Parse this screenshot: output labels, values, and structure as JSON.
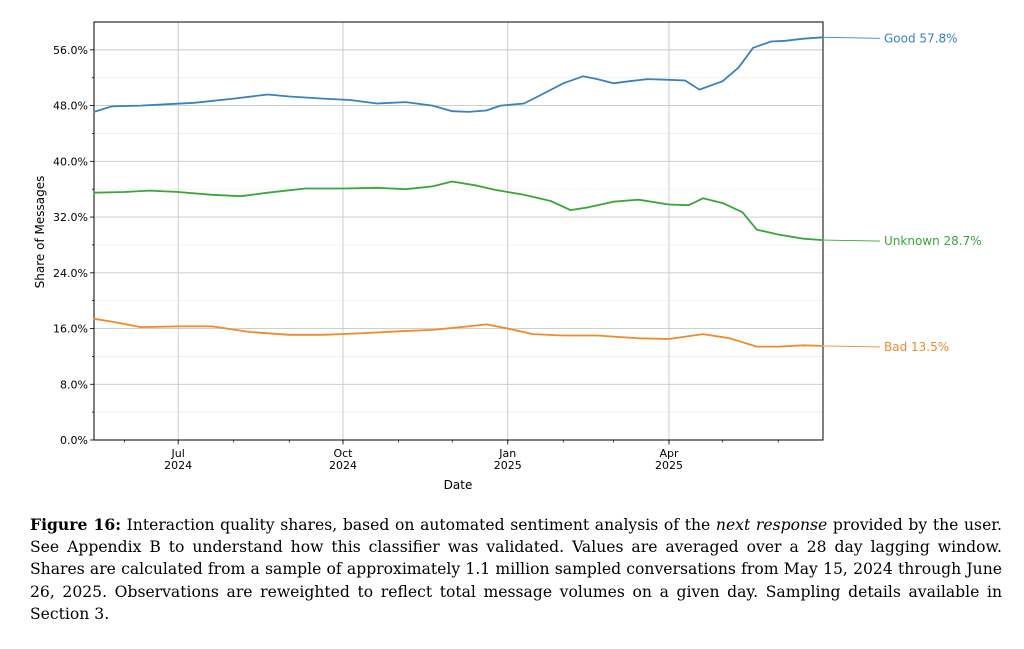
{
  "chart_data": {
    "type": "line",
    "xlabel": "Date",
    "ylabel": "Share of Messages",
    "ylim": [
      0,
      60
    ],
    "xlim": [
      "2024-05-15",
      "2025-06-26"
    ],
    "y_ticks": [
      "0.0%",
      "8.0%",
      "16.0%",
      "24.0%",
      "32.0%",
      "40.0%",
      "48.0%",
      "56.0%"
    ],
    "x_ticks": [
      {
        "date": "2024-07-01",
        "month": "Jul",
        "year": "2024"
      },
      {
        "date": "2024-10-01",
        "month": "Oct",
        "year": "2024"
      },
      {
        "date": "2025-01-01",
        "month": "Jan",
        "year": "2025"
      },
      {
        "date": "2025-04-01",
        "month": "Apr",
        "year": "2025"
      }
    ],
    "grid": true,
    "series": [
      {
        "name": "Good",
        "end_label": "Good  57.8%",
        "color": "#3a82bd",
        "points": [
          [
            "2024-05-15",
            47.1
          ],
          [
            "2024-05-25",
            47.9
          ],
          [
            "2024-06-10",
            48.0
          ],
          [
            "2024-06-25",
            48.2
          ],
          [
            "2024-07-10",
            48.4
          ],
          [
            "2024-08-01",
            49.0
          ],
          [
            "2024-08-20",
            49.6
          ],
          [
            "2024-09-01",
            49.3
          ],
          [
            "2024-09-20",
            49.0
          ],
          [
            "2024-10-05",
            48.8
          ],
          [
            "2024-10-20",
            48.3
          ],
          [
            "2024-11-05",
            48.5
          ],
          [
            "2024-11-20",
            48.0
          ],
          [
            "2024-12-01",
            47.2
          ],
          [
            "2024-12-10",
            47.1
          ],
          [
            "2024-12-20",
            47.3
          ],
          [
            "2024-12-28",
            48.0
          ],
          [
            "2025-01-10",
            48.3
          ],
          [
            "2025-01-20",
            49.6
          ],
          [
            "2025-02-01",
            51.2
          ],
          [
            "2025-02-12",
            52.2
          ],
          [
            "2025-02-20",
            51.8
          ],
          [
            "2025-03-01",
            51.2
          ],
          [
            "2025-03-10",
            51.5
          ],
          [
            "2025-03-20",
            51.8
          ],
          [
            "2025-04-01",
            51.7
          ],
          [
            "2025-04-10",
            51.6
          ],
          [
            "2025-04-18",
            50.3
          ],
          [
            "2025-05-01",
            51.5
          ],
          [
            "2025-05-10",
            53.5
          ],
          [
            "2025-05-18",
            56.3
          ],
          [
            "2025-05-28",
            57.2
          ],
          [
            "2025-06-05",
            57.3
          ],
          [
            "2025-06-15",
            57.6
          ],
          [
            "2025-06-26",
            57.8
          ]
        ]
      },
      {
        "name": "Unknown",
        "end_label": "Unknown  28.7%",
        "color": "#3aa63a",
        "points": [
          [
            "2024-05-15",
            35.5
          ],
          [
            "2024-06-01",
            35.6
          ],
          [
            "2024-06-15",
            35.8
          ],
          [
            "2024-07-01",
            35.6
          ],
          [
            "2024-07-20",
            35.2
          ],
          [
            "2024-08-05",
            35.0
          ],
          [
            "2024-08-20",
            35.5
          ],
          [
            "2024-09-10",
            36.1
          ],
          [
            "2024-10-01",
            36.1
          ],
          [
            "2024-10-20",
            36.2
          ],
          [
            "2024-11-05",
            36.0
          ],
          [
            "2024-11-20",
            36.4
          ],
          [
            "2024-12-01",
            37.1
          ],
          [
            "2024-12-15",
            36.5
          ],
          [
            "2024-12-25",
            35.9
          ],
          [
            "2025-01-10",
            35.2
          ],
          [
            "2025-01-25",
            34.3
          ],
          [
            "2025-02-05",
            33.0
          ],
          [
            "2025-02-15",
            33.4
          ],
          [
            "2025-03-01",
            34.2
          ],
          [
            "2025-03-15",
            34.5
          ],
          [
            "2025-04-01",
            33.8
          ],
          [
            "2025-04-12",
            33.7
          ],
          [
            "2025-04-20",
            34.7
          ],
          [
            "2025-05-01",
            34.0
          ],
          [
            "2025-05-12",
            32.7
          ],
          [
            "2025-05-20",
            30.2
          ],
          [
            "2025-06-01",
            29.5
          ],
          [
            "2025-06-15",
            28.9
          ],
          [
            "2025-06-26",
            28.7
          ]
        ]
      },
      {
        "name": "Bad",
        "end_label": "Bad  13.5%",
        "color": "#f08a2a",
        "points": [
          [
            "2024-05-15",
            17.4
          ],
          [
            "2024-05-25",
            17.0
          ],
          [
            "2024-06-10",
            16.2
          ],
          [
            "2024-07-01",
            16.3
          ],
          [
            "2024-07-20",
            16.3
          ],
          [
            "2024-08-10",
            15.5
          ],
          [
            "2024-09-01",
            15.1
          ],
          [
            "2024-09-20",
            15.1
          ],
          [
            "2024-10-10",
            15.3
          ],
          [
            "2024-11-01",
            15.6
          ],
          [
            "2024-11-20",
            15.8
          ],
          [
            "2024-12-10",
            16.3
          ],
          [
            "2024-12-20",
            16.6
          ],
          [
            "2025-01-01",
            16.0
          ],
          [
            "2025-01-15",
            15.2
          ],
          [
            "2025-02-01",
            15.0
          ],
          [
            "2025-02-20",
            15.0
          ],
          [
            "2025-03-15",
            14.6
          ],
          [
            "2025-04-01",
            14.5
          ],
          [
            "2025-04-20",
            15.2
          ],
          [
            "2025-05-05",
            14.6
          ],
          [
            "2025-05-20",
            13.4
          ],
          [
            "2025-06-01",
            13.4
          ],
          [
            "2025-06-15",
            13.6
          ],
          [
            "2025-06-26",
            13.5
          ]
        ]
      }
    ]
  },
  "caption": {
    "label": "Figure 16:",
    "text_before": " Interaction quality shares, based on automated sentiment analysis of the ",
    "emphasis": "next response",
    "text_after": " provided by the user. See Appendix B to understand how this classifier was validated. Values are averaged over a 28 day lagging window. Shares are calculated from a sample of approximately 1.1 million sampled conversations from May 15, 2024 through June 26, 2025. Observations are reweighted to reflect total message volumes on a given day. Sampling details available in Section 3."
  }
}
